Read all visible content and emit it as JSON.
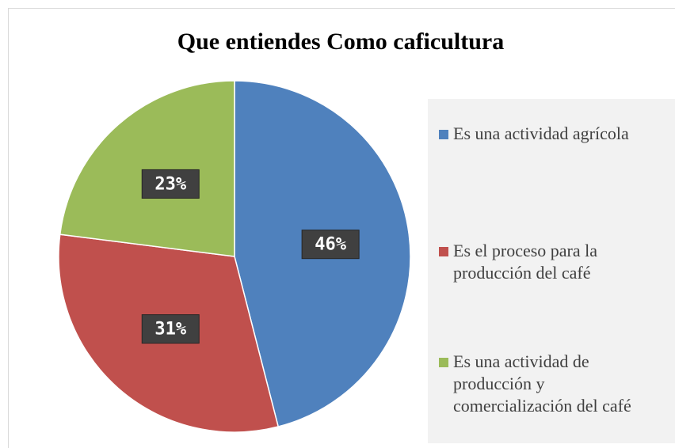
{
  "chart_data": {
    "type": "pie",
    "title": "Que entiendes Como caficultura",
    "categories": [
      "Es una actividad agrícola",
      "Es el proceso para la producción del café",
      "Es una actividad de producción y comercialización del café"
    ],
    "values": [
      46,
      31,
      23
    ],
    "value_labels": [
      "46%",
      "31%",
      "23%"
    ],
    "colors": [
      "#4f81bd",
      "#c0504d",
      "#9bbb59"
    ],
    "legend": "right"
  }
}
